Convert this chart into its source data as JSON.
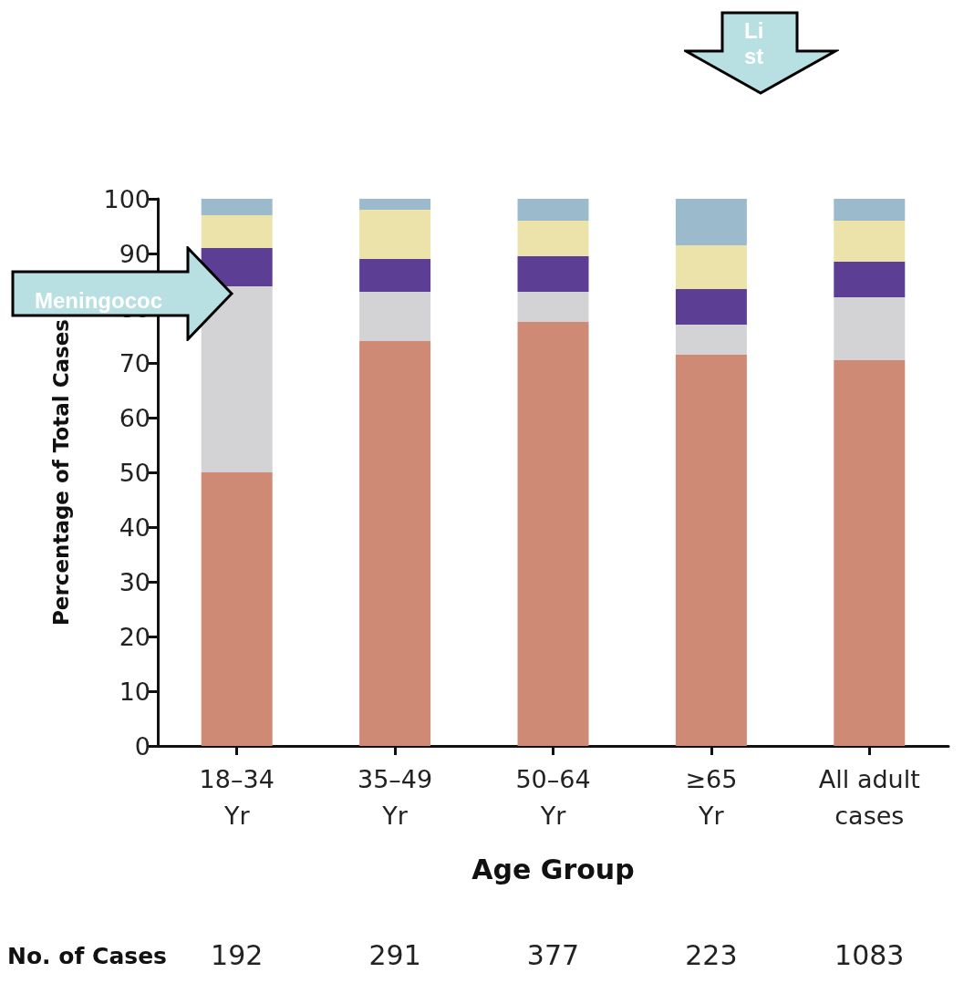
{
  "chart_data": {
    "type": "bar",
    "stacked": true,
    "xlabel": "Age Group",
    "ylabel": "Percentage of Total Cases",
    "categories": [
      "18–34\nYr",
      "35–49\nYr",
      "50–64\nYr",
      "≥65\nYr",
      "All adult\ncases"
    ],
    "ylim": [
      0,
      100
    ],
    "yticks": [
      0,
      10,
      20,
      30,
      40,
      50,
      60,
      70,
      80,
      90,
      100
    ],
    "series": [
      {
        "color": "#cf8a76",
        "values": [
          50,
          74,
          77.5,
          71.5,
          70.5
        ]
      },
      {
        "color": "#d3d3d6",
        "values": [
          34,
          9,
          5.5,
          5.5,
          11.5
        ]
      },
      {
        "color": "#5c3f94",
        "values": [
          7,
          6,
          6.5,
          6.5,
          6.5
        ]
      },
      {
        "color": "#ebe3a9",
        "values": [
          6,
          9,
          6.5,
          8,
          7.5
        ]
      },
      {
        "color": "#9bbacb",
        "values": [
          3,
          2,
          4,
          8.5,
          4
        ]
      }
    ],
    "annotations": [
      "No. of Cases",
      "192",
      "291",
      "377",
      "223",
      "1083",
      "Meningococ",
      "List"
    ]
  }
}
